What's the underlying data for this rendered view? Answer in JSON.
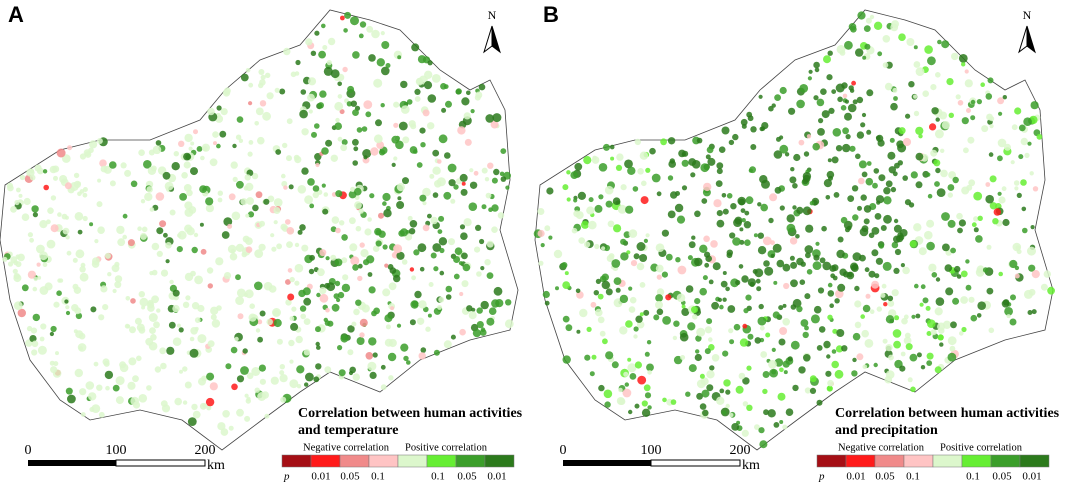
{
  "panels": [
    {
      "label": "A",
      "north": "N",
      "legend": {
        "title": [
          "Correlation between human activities",
          "and temperature"
        ],
        "negative": "Negative correlation",
        "positive": "Positive correlation",
        "p": "p",
        "p_labels": [
          "0.01",
          "0.05",
          "0.1",
          "0.1",
          "0.05",
          "0.01"
        ],
        "colors": [
          "#a50f15",
          "#ff1a1a",
          "#f08a8a",
          "#ffc4c4",
          "#dcf7cc",
          "#66ee33",
          "#3b9e2a",
          "#2c7a1c"
        ]
      },
      "scale": {
        "labels": [
          "0",
          "100",
          "200"
        ],
        "unit": "km"
      }
    },
    {
      "label": "B",
      "north": "N",
      "legend": {
        "title": [
          "Correlation between human activities",
          "and precipitation"
        ],
        "negative": "Negative correlation",
        "positive": "Positive correlation",
        "p": "p",
        "p_labels": [
          "0.01",
          "0.05",
          "0.1",
          "0.1",
          "0.05",
          "0.01"
        ],
        "colors": [
          "#a50f15",
          "#ff1a1a",
          "#f08a8a",
          "#ffc4c4",
          "#dcf7cc",
          "#66ee33",
          "#3b9e2a",
          "#2c7a1c"
        ]
      },
      "scale": {
        "labels": [
          "0",
          "100",
          "200"
        ],
        "unit": "km"
      }
    }
  ]
}
